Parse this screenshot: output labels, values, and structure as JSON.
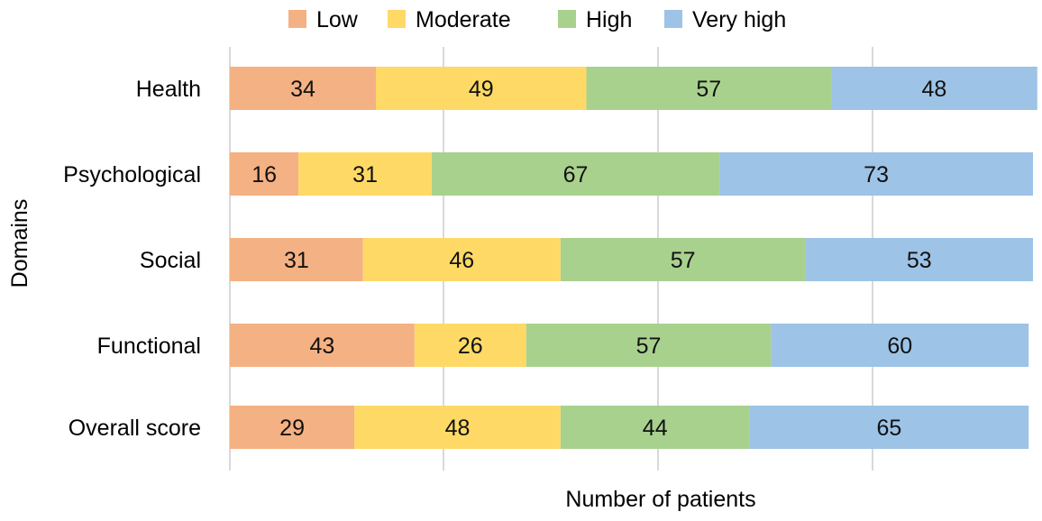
{
  "chart_data": {
    "type": "bar",
    "orientation": "horizontal",
    "stacked": true,
    "title": "",
    "xlabel": "Number of patients",
    "ylabel": "Domains",
    "categories": [
      "Health",
      "Psychological",
      "Social",
      "Functional",
      "Overall score"
    ],
    "series": [
      {
        "name": "Low",
        "color": "#F4B183",
        "values": [
          34,
          16,
          31,
          43,
          29
        ]
      },
      {
        "name": "Moderate",
        "color": "#FFD966",
        "values": [
          49,
          31,
          46,
          26,
          48
        ]
      },
      {
        "name": "High",
        "color": "#A9D18E",
        "values": [
          57,
          67,
          57,
          57,
          44
        ]
      },
      {
        "name": "Very high",
        "color": "#9DC3E6",
        "values": [
          48,
          73,
          53,
          60,
          65
        ]
      }
    ],
    "xlim": [
      0,
      187
    ],
    "grid": true,
    "legend_position": "top",
    "tick_labels_shown": false
  }
}
